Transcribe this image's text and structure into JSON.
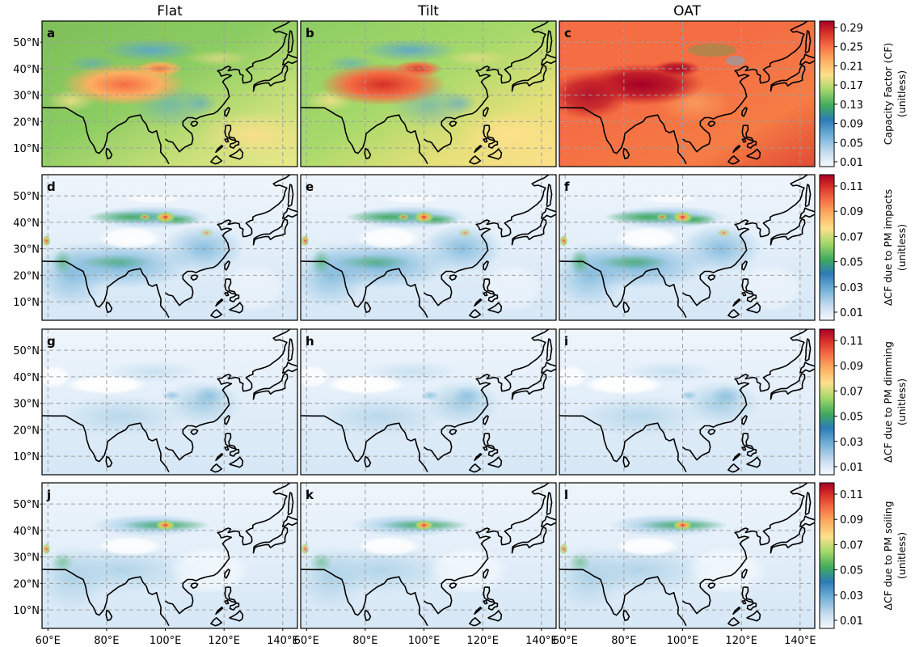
{
  "columns": [
    "Flat",
    "Tilt",
    "OAT"
  ],
  "rows": [
    {
      "panels": [
        "a",
        "b",
        "c"
      ],
      "colorbar": {
        "label_line1": "Capacity Factor (CF)",
        "label_line2": "(unitless)",
        "ticks": [
          "0.29",
          "0.25",
          "0.21",
          "0.17",
          "0.13",
          "0.09",
          "0.05",
          "0.01"
        ]
      }
    },
    {
      "panels": [
        "d",
        "e",
        "f"
      ],
      "colorbar": {
        "label_line1": "ΔCF due to PM impacts",
        "label_line2": "(unitless)",
        "ticks": [
          "0.11",
          "0.09",
          "0.07",
          "0.05",
          "0.03",
          "0.01"
        ]
      }
    },
    {
      "panels": [
        "g",
        "h",
        "i"
      ],
      "colorbar": {
        "label_line1": "ΔCF due to PM dimming",
        "label_line2": "(unitless)",
        "ticks": [
          "0.11",
          "0.09",
          "0.07",
          "0.05",
          "0.03",
          "0.01"
        ]
      }
    },
    {
      "panels": [
        "j",
        "k",
        "l"
      ],
      "colorbar": {
        "label_line1": "ΔCF due to PM soiling",
        "label_line2": "(unitless)",
        "ticks": [
          "0.11",
          "0.09",
          "0.07",
          "0.05",
          "0.03",
          "0.01"
        ]
      }
    }
  ],
  "lat_labels": [
    "50°N",
    "40°N",
    "30°N",
    "20°N",
    "10°N"
  ],
  "lon_labels": [
    "60°E",
    "80°E",
    "100°E",
    "120°E",
    "140°E"
  ],
  "colors": {
    "colormap": [
      "#f7fbff",
      "#c6dbef",
      "#6baed6",
      "#2c7bb6",
      "#41ab5d",
      "#a6d96a",
      "#fee08b",
      "#fdae61",
      "#f46d43",
      "#d73027",
      "#a50026"
    ],
    "coast": "#000000",
    "grid": "#9e9e9e"
  }
}
